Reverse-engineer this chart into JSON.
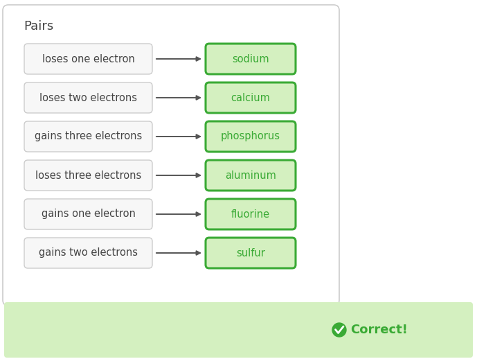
{
  "title": "Pairs",
  "pairs": [
    {
      "left": "loses one electron",
      "right": "sodium"
    },
    {
      "left": "loses two electrons",
      "right": "calcium"
    },
    {
      "left": "gains three electrons",
      "right": "phosphorus"
    },
    {
      "left": "loses three electrons",
      "right": "aluminum"
    },
    {
      "left": "gains one electron",
      "right": "fluorine"
    },
    {
      "left": "gains two electrons",
      "right": "sulfur"
    }
  ],
  "bg_color": "#ffffff",
  "outer_box_fill": "#ffffff",
  "outer_box_edge": "#cccccc",
  "left_box_fill": "#f7f7f7",
  "left_box_edge": "#cccccc",
  "right_box_fill": "#d4f0c0",
  "right_box_edge": "#3aaa35",
  "left_text_color": "#444444",
  "right_text_color": "#3aaa35",
  "title_color": "#444444",
  "arrow_color": "#555555",
  "correct_bar_fill": "#d4f0c0",
  "correct_text_color": "#3aaa35",
  "correct_icon_color": "#3aaa35",
  "correct_text": "Correct!",
  "font_size": 10.5,
  "title_font_size": 13
}
